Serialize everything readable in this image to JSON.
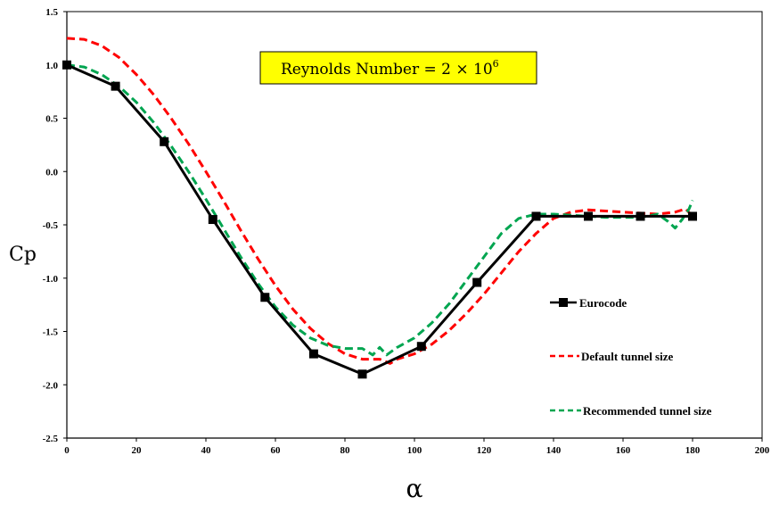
{
  "chart_data": {
    "type": "line",
    "xlabel": "α",
    "ylabel": "Cp",
    "xlim": [
      0,
      200
    ],
    "ylim": [
      -2.5,
      1.5
    ],
    "xticks": [
      0,
      20,
      40,
      60,
      80,
      100,
      120,
      140,
      160,
      180,
      200
    ],
    "yticks": [
      1.5,
      1.0,
      0.5,
      0.0,
      -0.5,
      -1.0,
      -1.5,
      -2.0,
      -2.5
    ],
    "xtick_labels": [
      "0",
      "20",
      "40",
      "60",
      "80",
      "100",
      "120",
      "140",
      "160",
      "180",
      "200"
    ],
    "ytick_labels": [
      "1.5",
      "1.0",
      "0.5",
      "0.0",
      "-0.5",
      "-1.0",
      "-1.5",
      "-2.0",
      "-2.5"
    ],
    "grid": false,
    "legend_position": "right",
    "annotation": {
      "prefix": "Reynolds Number = ",
      "base": "2 × 10",
      "exponent": "6",
      "background": "#ffff00"
    },
    "series": [
      {
        "name": "Eurocode",
        "color": "#000000",
        "style": "solid-square-markers",
        "x": [
          0,
          14,
          28,
          42,
          57,
          71,
          85,
          102,
          118,
          135,
          150,
          165,
          180
        ],
        "y": [
          1.0,
          0.8,
          0.28,
          -0.45,
          -1.18,
          -1.71,
          -1.9,
          -1.64,
          -1.04,
          -0.42,
          -0.42,
          -0.42,
          -0.42
        ]
      },
      {
        "name": "Default tunnel size",
        "color": "#ff0000",
        "style": "dashed",
        "x": [
          0,
          5,
          10,
          15,
          20,
          25,
          30,
          35,
          40,
          45,
          50,
          55,
          60,
          65,
          70,
          75,
          80,
          85,
          90,
          93,
          95,
          100,
          105,
          110,
          115,
          120,
          125,
          130,
          135,
          140,
          145,
          150,
          155,
          160,
          165,
          170,
          175,
          178,
          180
        ],
        "y": [
          1.25,
          1.24,
          1.18,
          1.07,
          0.91,
          0.72,
          0.5,
          0.26,
          0.0,
          -0.27,
          -0.55,
          -0.82,
          -1.07,
          -1.29,
          -1.47,
          -1.61,
          -1.71,
          -1.76,
          -1.76,
          -1.8,
          -1.76,
          -1.71,
          -1.62,
          -1.49,
          -1.33,
          -1.15,
          -0.95,
          -0.75,
          -0.58,
          -0.44,
          -0.38,
          -0.36,
          -0.37,
          -0.38,
          -0.39,
          -0.4,
          -0.38,
          -0.35,
          -0.42
        ]
      },
      {
        "name": "Recommended tunnel size",
        "color": "#00a550",
        "style": "dashed",
        "x": [
          0,
          5,
          10,
          15,
          20,
          25,
          30,
          35,
          40,
          45,
          50,
          55,
          60,
          65,
          70,
          75,
          80,
          85,
          88,
          90,
          92,
          95,
          100,
          105,
          110,
          115,
          120,
          125,
          130,
          135,
          140,
          145,
          150,
          155,
          160,
          165,
          170,
          173,
          175,
          177,
          179,
          180
        ],
        "y": [
          1.0,
          0.98,
          0.91,
          0.8,
          0.65,
          0.46,
          0.24,
          0.0,
          -0.26,
          -0.53,
          -0.8,
          -1.05,
          -1.27,
          -1.44,
          -1.56,
          -1.63,
          -1.66,
          -1.66,
          -1.72,
          -1.65,
          -1.72,
          -1.65,
          -1.56,
          -1.42,
          -1.24,
          -1.02,
          -0.8,
          -0.58,
          -0.44,
          -0.4,
          -0.4,
          -0.41,
          -0.42,
          -0.43,
          -0.43,
          -0.43,
          -0.4,
          -0.47,
          -0.53,
          -0.45,
          -0.35,
          -0.27
        ]
      }
    ]
  }
}
